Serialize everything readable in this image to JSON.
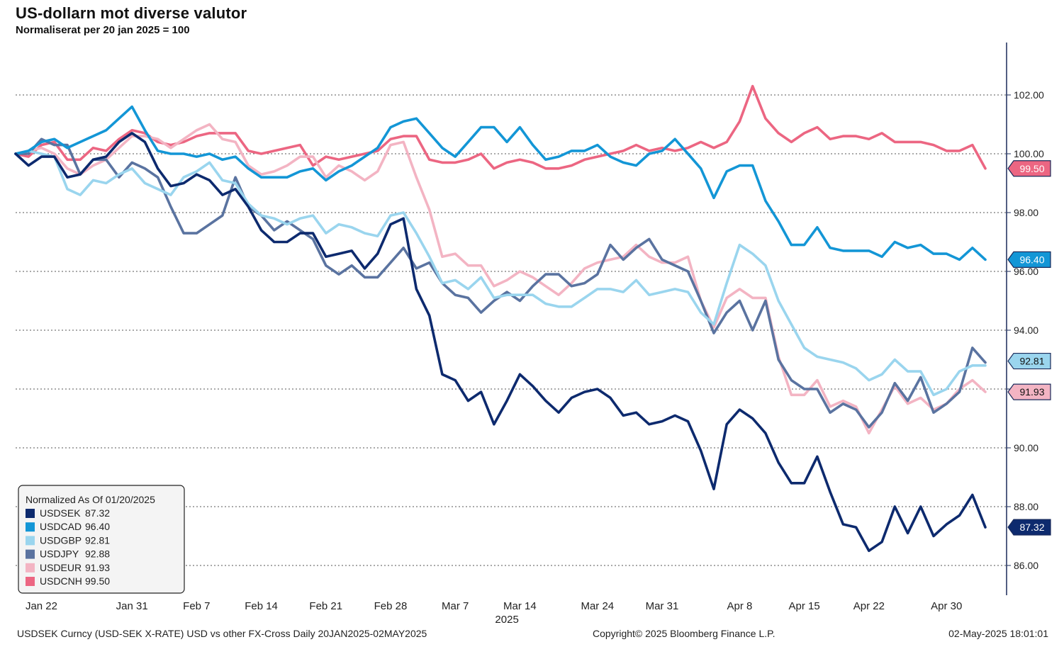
{
  "header": {
    "title": "US-dollarn mot diverse valutor",
    "subtitle": "Normaliserat per 20 jan 2025 = 100"
  },
  "footer": {
    "left": "USDSEK Curncy (USD-SEK X-RATE) USD vs other FX-Cross  Daily 20JAN2025-02MAY2025",
    "center": "Copyright© 2025 Bloomberg Finance L.P.",
    "right": "02-May-2025 18:01:01"
  },
  "chart_data": {
    "type": "line",
    "title": "US-dollarn mot diverse valutor",
    "subtitle": "Normaliserat per 20 jan 2025 = 100",
    "ylim": [
      85,
      103.5
    ],
    "y_ticks": [
      86,
      88,
      90,
      92,
      94,
      96,
      98,
      100,
      102
    ],
    "y_tick_labels": [
      "86.00",
      "88.00",
      "90.00",
      "92.00",
      "94.00",
      "96.00",
      "98.00",
      "100.00",
      "102.00"
    ],
    "x_ticks": [
      "Jan 22",
      "Jan 31",
      "Feb 7",
      "Feb 14",
      "Feb 21",
      "Feb 28",
      "Mar 7",
      "Mar 14",
      "Mar 24",
      "Mar 31",
      "Apr 8",
      "Apr 15",
      "Apr 22",
      "Apr 30"
    ],
    "x_tick_index": [
      2,
      9,
      14,
      19,
      24,
      29,
      34,
      39,
      45,
      50,
      56,
      61,
      66,
      72
    ],
    "x_year_label": "2025",
    "x_year_label_index": 38,
    "grid": "horizontal-dotted",
    "legend_title": "Normalized As Of 01/20/2025",
    "legend_position": "bottom-left",
    "colors": {
      "USDSEK": "#0d2a6e",
      "USDCAD": "#1396d6",
      "USDGBP": "#9ad5ee",
      "USDJPY": "#5a73a0",
      "USDEUR": "#f3b4c3",
      "USDCNH": "#ec6682"
    },
    "series": [
      {
        "name": "USDSEK",
        "last_label": "87.32",
        "color": "#0d2a6e",
        "values": [
          100.0,
          99.6,
          99.9,
          99.9,
          99.2,
          99.3,
          99.8,
          99.9,
          100.4,
          100.7,
          100.4,
          99.5,
          98.9,
          99.0,
          99.3,
          99.1,
          98.6,
          98.8,
          98.2,
          97.4,
          97.0,
          97.0,
          97.3,
          97.3,
          96.5,
          96.6,
          96.7,
          96.1,
          96.6,
          97.6,
          97.8,
          95.4,
          94.5,
          92.5,
          92.3,
          91.6,
          91.9,
          90.8,
          91.6,
          92.5,
          92.1,
          91.6,
          91.2,
          91.7,
          91.9,
          92.0,
          91.7,
          91.1,
          91.2,
          90.8,
          90.9,
          91.1,
          90.9,
          89.9,
          88.6,
          90.8,
          91.3,
          91.0,
          90.5,
          89.5,
          88.8,
          88.8,
          89.7,
          88.5,
          87.4,
          87.3,
          86.5,
          86.8,
          88.0,
          87.1,
          88.0,
          87.0,
          87.4,
          87.7,
          88.4,
          87.3
        ]
      },
      {
        "name": "USDCAD",
        "last_label": "96.40",
        "color": "#1396d6",
        "values": [
          100.0,
          100.1,
          100.4,
          100.5,
          100.2,
          100.4,
          100.6,
          100.8,
          101.2,
          101.6,
          100.8,
          100.1,
          100.0,
          100.0,
          99.9,
          100.0,
          99.8,
          99.9,
          99.5,
          99.2,
          99.2,
          99.2,
          99.4,
          99.5,
          99.1,
          99.4,
          99.6,
          99.9,
          100.2,
          100.9,
          101.1,
          101.2,
          100.7,
          100.2,
          99.9,
          100.4,
          100.9,
          100.9,
          100.4,
          100.9,
          100.3,
          99.8,
          99.9,
          100.1,
          100.1,
          100.3,
          99.9,
          99.7,
          99.6,
          100.0,
          100.1,
          100.5,
          100.0,
          99.5,
          98.5,
          99.4,
          99.6,
          99.6,
          98.4,
          97.7,
          96.9,
          96.9,
          97.5,
          96.8,
          96.7,
          96.7,
          96.7,
          96.5,
          97.0,
          96.8,
          96.9,
          96.6,
          96.6,
          96.4,
          96.8,
          96.4
        ]
      },
      {
        "name": "USDGBP",
        "last_label": "92.81",
        "color": "#9ad5ee",
        "values": [
          100.0,
          100.1,
          100.0,
          99.9,
          98.8,
          98.6,
          99.1,
          99.0,
          99.3,
          99.5,
          99.0,
          98.8,
          98.6,
          99.2,
          99.4,
          99.7,
          99.1,
          99.0,
          98.3,
          97.9,
          97.8,
          97.6,
          97.8,
          97.9,
          97.3,
          97.6,
          97.5,
          97.3,
          97.2,
          97.9,
          98.0,
          97.3,
          96.5,
          95.6,
          95.7,
          95.4,
          95.8,
          95.1,
          95.2,
          95.2,
          95.2,
          94.9,
          94.8,
          94.8,
          95.1,
          95.4,
          95.4,
          95.3,
          95.7,
          95.2,
          95.3,
          95.4,
          95.3,
          94.6,
          94.2,
          95.6,
          96.9,
          96.6,
          96.2,
          95.0,
          94.2,
          93.4,
          93.1,
          93.0,
          92.9,
          92.7,
          92.3,
          92.5,
          93.0,
          92.6,
          92.6,
          91.8,
          92.0,
          92.6,
          92.8,
          92.8
        ]
      },
      {
        "name": "USDJPY",
        "last_label": "92.88",
        "color": "#5a73a0",
        "values": [
          100.0,
          100.0,
          100.5,
          100.3,
          100.3,
          99.3,
          99.8,
          99.8,
          99.2,
          99.7,
          99.5,
          99.2,
          98.2,
          97.3,
          97.3,
          97.6,
          97.9,
          99.2,
          98.2,
          97.9,
          97.4,
          97.7,
          97.4,
          97.1,
          96.2,
          95.9,
          96.2,
          95.8,
          95.8,
          96.3,
          96.8,
          96.1,
          96.3,
          95.6,
          95.2,
          95.1,
          94.6,
          95.0,
          95.3,
          95.0,
          95.5,
          95.9,
          95.9,
          95.5,
          95.6,
          95.9,
          96.9,
          96.4,
          96.8,
          97.1,
          96.4,
          96.2,
          96.0,
          95.0,
          93.9,
          94.6,
          95.0,
          94.0,
          95.0,
          93.0,
          92.3,
          92.0,
          92.0,
          91.2,
          91.5,
          91.3,
          90.7,
          91.2,
          92.2,
          91.6,
          92.4,
          91.2,
          91.5,
          91.9,
          93.4,
          92.9
        ]
      },
      {
        "name": "USDEUR",
        "last_label": "91.93",
        "color": "#f3b4c3",
        "values": [
          100.0,
          100.1,
          100.2,
          100.0,
          99.5,
          99.3,
          99.6,
          99.8,
          100.2,
          100.6,
          100.6,
          100.5,
          100.2,
          100.5,
          100.8,
          101.0,
          100.5,
          100.4,
          99.6,
          99.3,
          99.4,
          99.6,
          99.9,
          99.9,
          99.2,
          99.6,
          99.4,
          99.1,
          99.4,
          100.3,
          100.4,
          99.2,
          98.1,
          96.5,
          96.6,
          96.2,
          96.2,
          95.5,
          95.7,
          96.0,
          95.8,
          95.5,
          95.2,
          95.6,
          96.1,
          96.3,
          96.4,
          96.5,
          96.9,
          96.5,
          96.3,
          96.3,
          96.5,
          95.0,
          94.1,
          95.1,
          95.4,
          95.1,
          95.1,
          93.1,
          91.8,
          91.8,
          92.3,
          91.4,
          91.6,
          91.4,
          90.5,
          91.3,
          92.1,
          91.5,
          91.7,
          91.3,
          91.5,
          92.0,
          92.3,
          91.9
        ]
      },
      {
        "name": "USDCNH",
        "last_label": "99.50",
        "color": "#ec6682",
        "values": [
          100.0,
          99.9,
          100.3,
          100.4,
          99.8,
          99.8,
          100.2,
          100.1,
          100.5,
          100.8,
          100.7,
          100.4,
          100.3,
          100.4,
          100.6,
          100.7,
          100.7,
          100.7,
          100.1,
          100.0,
          100.1,
          100.2,
          100.3,
          99.6,
          99.9,
          99.8,
          99.9,
          100.0,
          100.1,
          100.5,
          100.6,
          100.6,
          99.8,
          99.7,
          99.7,
          99.8,
          100.0,
          99.5,
          99.7,
          99.8,
          99.7,
          99.5,
          99.5,
          99.6,
          99.8,
          99.9,
          100.0,
          100.1,
          100.3,
          100.1,
          100.2,
          100.1,
          100.2,
          100.4,
          100.2,
          100.4,
          101.1,
          102.3,
          101.2,
          100.7,
          100.4,
          100.7,
          100.9,
          100.5,
          100.6,
          100.6,
          100.5,
          100.7,
          100.4,
          100.4,
          100.4,
          100.3,
          100.1,
          100.1,
          100.3,
          99.5
        ]
      }
    ],
    "label_order": [
      "USDCNH",
      "USDCAD",
      "USDGBP",
      "USDEUR",
      "USDSEK"
    ]
  }
}
